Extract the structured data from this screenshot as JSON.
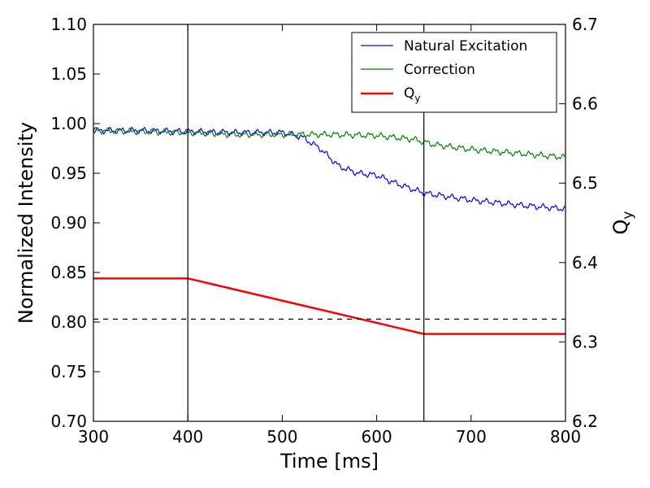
{
  "chart_data": {
    "type": "line",
    "xlabel": "Time [ms]",
    "ylabel": "Normalized Intensity",
    "ylabel_right": {
      "base": "Q",
      "sub": "y"
    },
    "xlim": [
      300,
      800
    ],
    "ylim": [
      0.7,
      1.1
    ],
    "ylim_right": [
      6.2,
      6.7
    ],
    "xticks": [
      "300",
      "400",
      "500",
      "600",
      "700",
      "800"
    ],
    "yticks": [
      "0.70",
      "0.75",
      "0.80",
      "0.85",
      "0.90",
      "0.95",
      "1.00",
      "1.05",
      "1.10"
    ],
    "yticks_right": [
      "6.2",
      "6.3",
      "6.4",
      "6.5",
      "6.6",
      "6.7"
    ],
    "grid": false,
    "legend_position": "top-right",
    "vertical_lines": [
      400,
      650
    ],
    "horizontal_dashed_line": 0.803,
    "series": [
      {
        "name": "Natural Excitation",
        "color": "#0000ff",
        "axis": "left",
        "ripple": 0.0035,
        "x": [
          300,
          350,
          400,
          450,
          500,
          520,
          540,
          560,
          580,
          600,
          620,
          650,
          700,
          750,
          800
        ],
        "y": [
          0.993,
          0.993,
          0.992,
          0.991,
          0.991,
          0.987,
          0.975,
          0.957,
          0.95,
          0.948,
          0.94,
          0.93,
          0.923,
          0.918,
          0.914
        ]
      },
      {
        "name": "Correction",
        "color": "#008000",
        "axis": "left",
        "ripple": 0.0035,
        "x": [
          300,
          350,
          400,
          450,
          500,
          550,
          600,
          640,
          660,
          700,
          750,
          800
        ],
        "y": [
          0.993,
          0.992,
          0.991,
          0.989,
          0.989,
          0.989,
          0.988,
          0.984,
          0.979,
          0.974,
          0.97,
          0.966
        ]
      },
      {
        "name": "Q",
        "name_sub": "y",
        "color": "#ff0000",
        "axis": "right",
        "ripple": 0,
        "x": [
          300,
          400,
          650,
          800
        ],
        "y": [
          6.38,
          6.38,
          6.31,
          6.31
        ]
      }
    ]
  }
}
